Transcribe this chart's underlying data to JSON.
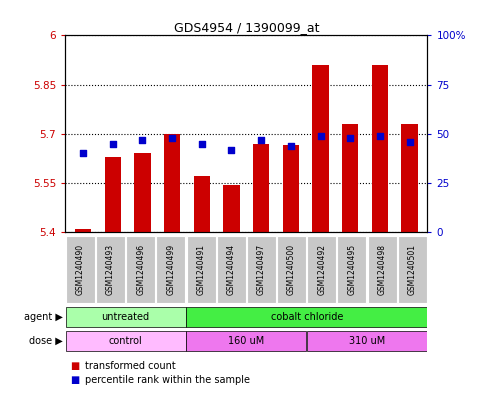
{
  "title": "GDS4954 / 1390099_at",
  "samples": [
    "GSM1240490",
    "GSM1240493",
    "GSM1240496",
    "GSM1240499",
    "GSM1240491",
    "GSM1240494",
    "GSM1240497",
    "GSM1240500",
    "GSM1240492",
    "GSM1240495",
    "GSM1240498",
    "GSM1240501"
  ],
  "transformed_count": [
    5.41,
    5.63,
    5.64,
    5.7,
    5.57,
    5.545,
    5.67,
    5.665,
    5.91,
    5.73,
    5.91,
    5.73
  ],
  "percentile_rank": [
    40,
    45,
    47,
    48,
    45,
    42,
    47,
    44,
    49,
    48,
    49,
    46
  ],
  "ylim": [
    5.4,
    6.0
  ],
  "y_ticks": [
    5.4,
    5.55,
    5.7,
    5.85,
    6.0
  ],
  "y_tick_labels": [
    "5.4",
    "5.55",
    "5.7",
    "5.85",
    "6"
  ],
  "right_ylim": [
    0,
    100
  ],
  "right_ticks": [
    0,
    25,
    50,
    75,
    100
  ],
  "right_tick_labels": [
    "0",
    "25",
    "50",
    "75",
    "100%"
  ],
  "bar_color": "#cc0000",
  "dot_color": "#0000cc",
  "bar_width": 0.55,
  "agent_groups": [
    {
      "label": "untreated",
      "start": 0,
      "end": 4,
      "color": "#aaffaa"
    },
    {
      "label": "cobalt chloride",
      "start": 4,
      "end": 12,
      "color": "#44ee44"
    }
  ],
  "dose_groups": [
    {
      "label": "control",
      "start": 0,
      "end": 4,
      "color": "#ffbbff"
    },
    {
      "label": "160 uM",
      "start": 4,
      "end": 8,
      "color": "#ee77ee"
    },
    {
      "label": "310 uM",
      "start": 8,
      "end": 12,
      "color": "#ee77ee"
    }
  ],
  "legend_items": [
    {
      "label": "transformed count",
      "color": "#cc0000"
    },
    {
      "label": "percentile rank within the sample",
      "color": "#0000cc"
    }
  ],
  "background_color": "#ffffff",
  "tick_label_color_left": "#cc0000",
  "tick_label_color_right": "#0000cc",
  "sample_box_color": "#c8c8c8"
}
